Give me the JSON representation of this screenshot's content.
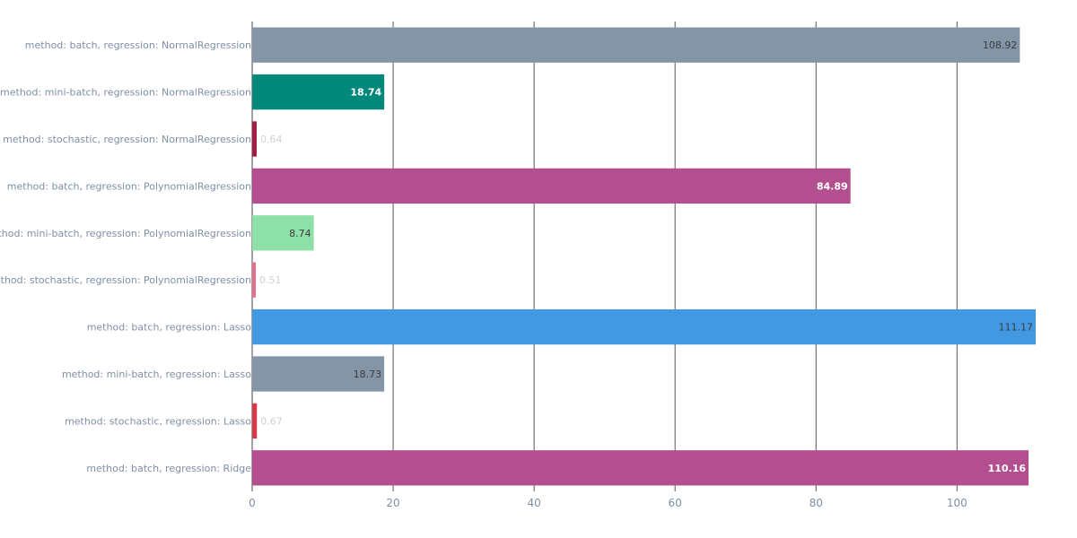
{
  "chart_data": {
    "type": "bar",
    "orientation": "horizontal",
    "title": "",
    "xlabel": "",
    "ylabel": "",
    "xlim": [
      0,
      111.17
    ],
    "x_ticks": [
      0,
      20,
      40,
      60,
      80,
      100
    ],
    "x_tick_labels": [
      "0",
      "20",
      "40",
      "60",
      "80",
      "100"
    ],
    "grid": true,
    "categories": [
      "method: batch, regression: NormalRegression",
      "method: mini-batch, regression: NormalRegression",
      "method: stochastic, regression: NormalRegression",
      "method: batch, regression: PolynomialRegression",
      "method: mini-batch, regression: PolynomialRegression",
      "method: stochastic, regression: PolynomialRegression",
      "method: batch, regression: Lasso",
      "method: mini-batch, regression: Lasso",
      "method: stochastic, regression: Lasso",
      "method: batch, regression: Ridge"
    ],
    "values": [
      108.92,
      18.74,
      0.64,
      84.89,
      8.74,
      0.51,
      111.17,
      18.73,
      0.67,
      110.16
    ],
    "value_labels": [
      "108.92",
      "18.74",
      "0.64",
      "84.89",
      "8.74",
      "0.51",
      "111.17",
      "18.73",
      "0.67",
      "110.16"
    ],
    "colors": [
      "#8395a7",
      "#00887a",
      "#a31f45",
      "#b44f8f",
      "#8ce0a8",
      "#e4708e",
      "#4299e1",
      "#8395a7",
      "#d6384c",
      "#b44f8f"
    ],
    "label_colors": [
      "#3b3b3b",
      "#ffffff",
      "#d0d0d0",
      "#ffffff",
      "#3b3b3b",
      "#d0d0d0",
      "#3b3b3b",
      "#3b3b3b",
      "#d0d0d0",
      "#ffffff"
    ],
    "label_positions": [
      "inside",
      "inside",
      "outside",
      "inside",
      "inside",
      "outside",
      "inside",
      "inside",
      "outside",
      "inside"
    ],
    "label_bold": [
      false,
      true,
      false,
      true,
      false,
      false,
      false,
      false,
      false,
      true
    ]
  }
}
